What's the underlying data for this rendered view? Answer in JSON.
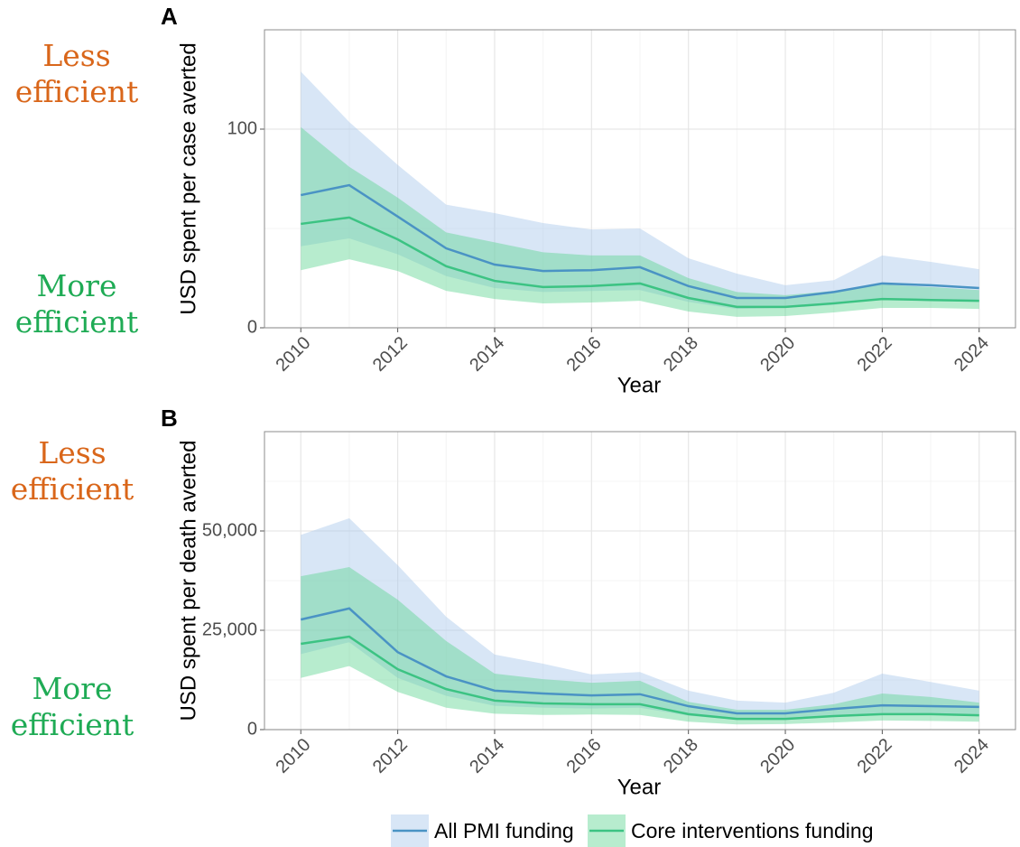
{
  "chart_data": [
    {
      "type": "line",
      "panel_label": "A",
      "xlabel": "Year",
      "ylabel": "USD spent per case averted",
      "x": [
        2010,
        2011,
        2012,
        2013,
        2014,
        2015,
        2016,
        2017,
        2018,
        2019,
        2020,
        2021,
        2022,
        2023,
        2024
      ],
      "xlim": [
        2009.25,
        2024.75
      ],
      "xticks": [
        2010,
        2012,
        2014,
        2016,
        2018,
        2020,
        2022,
        2024
      ],
      "ylim": [
        0,
        150
      ],
      "yticks": [
        0,
        100
      ],
      "grid": true,
      "annotations": [
        {
          "text": "Less efficient",
          "color": "#d9661a"
        },
        {
          "text": "More efficient",
          "color": "#1fab55"
        }
      ],
      "series": [
        {
          "name": "All PMI funding",
          "color": "#4a93c4",
          "fill": "#a8c8ea",
          "values": [
            66.8,
            71.8,
            56,
            40,
            31.8,
            28.6,
            29,
            30.5,
            21,
            15,
            15,
            18,
            22.3,
            21.4,
            20
          ],
          "upper": [
            129,
            103.6,
            82,
            62,
            57.7,
            52.7,
            49.5,
            50,
            35,
            27.3,
            21.4,
            24,
            36.4,
            33.2,
            29.5
          ],
          "lower": [
            41,
            45,
            37,
            26,
            20,
            18,
            18.5,
            19,
            13,
            9.5,
            10,
            11.5,
            14.5,
            14,
            13
          ]
        },
        {
          "name": "Core interventions funding",
          "color": "#3cc383",
          "fill": "#5fd492",
          "values": [
            52.3,
            55.5,
            44.5,
            31,
            23.6,
            20.5,
            21,
            22.3,
            15,
            10.5,
            10.5,
            12.3,
            14.5,
            14,
            13.6
          ],
          "upper": [
            101,
            81,
            65.5,
            48,
            43,
            38,
            36.4,
            36.4,
            25,
            18,
            16.4,
            18.6,
            21.8,
            20.5,
            19
          ],
          "lower": [
            29,
            34.5,
            28.6,
            18.6,
            14.5,
            12.3,
            12.7,
            13.6,
            8.2,
            5.5,
            5.9,
            7.7,
            10,
            10,
            9.5
          ]
        }
      ]
    },
    {
      "type": "line",
      "panel_label": "B",
      "xlabel": "Year",
      "ylabel": "USD spent per death averted",
      "x": [
        2010,
        2011,
        2012,
        2013,
        2014,
        2015,
        2016,
        2017,
        2018,
        2019,
        2020,
        2021,
        2022,
        2023,
        2024
      ],
      "xlim": [
        2009.25,
        2024.75
      ],
      "xticks": [
        2010,
        2012,
        2014,
        2016,
        2018,
        2020,
        2022,
        2024
      ],
      "ylim": [
        0,
        75000
      ],
      "yticks": [
        0,
        {
          "value": 25000,
          "label": "25,000"
        },
        {
          "value": 50000,
          "label": "50,000"
        }
      ],
      "grid": true,
      "annotations": [
        {
          "text": "Less efficient",
          "color": "#d9661a"
        },
        {
          "text": "More efficient",
          "color": "#1fab55"
        }
      ],
      "series": [
        {
          "name": "All PMI funding",
          "color": "#4a93c4",
          "fill": "#a8c8ea",
          "values": [
            27700,
            30500,
            19500,
            13400,
            9800,
            9100,
            8600,
            8900,
            5900,
            4100,
            4100,
            5200,
            6100,
            5900,
            5700
          ],
          "upper": [
            49000,
            53200,
            41400,
            28400,
            18900,
            16600,
            13900,
            14500,
            9800,
            7300,
            6800,
            9300,
            14100,
            12000,
            9800
          ],
          "lower": [
            19000,
            22000,
            13000,
            8500,
            6000,
            5500,
            5300,
            5500,
            3500,
            2500,
            2500,
            3300,
            4000,
            3800,
            3600
          ]
        },
        {
          "name": "Core interventions funding",
          "color": "#3cc383",
          "fill": "#5fd492",
          "values": [
            21600,
            23400,
            15200,
            10200,
            7300,
            6600,
            6400,
            6400,
            3900,
            2700,
            2700,
            3400,
            3900,
            3900,
            3600
          ],
          "upper": [
            38600,
            40900,
            32700,
            22300,
            14100,
            12700,
            11800,
            12300,
            7000,
            5000,
            5000,
            6400,
            9100,
            8200,
            6800
          ],
          "lower": [
            13000,
            16000,
            9500,
            5500,
            4000,
            3700,
            3800,
            3700,
            2000,
            1300,
            1400,
            1800,
            2300,
            2200,
            2000
          ]
        }
      ]
    }
  ]
}
